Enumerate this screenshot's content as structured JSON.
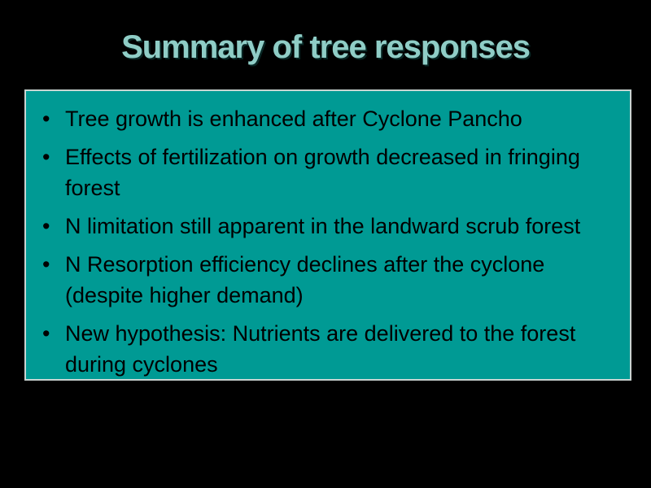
{
  "slide": {
    "title": "Summary of tree responses",
    "bullet_char": "•",
    "bullets": [
      "Tree growth is enhanced after Cyclone Pancho",
      "Effects of fertilization on growth decreased in fringing forest",
      "N limitation still apparent in the landward scrub forest",
      "N Resorption efficiency declines after the cyclone (despite higher demand)",
      "New hypothesis: Nutrients are delivered to the forest during cyclones"
    ],
    "colors": {
      "background": "#000000",
      "title_text": "#8FCDC6",
      "box_fill": "#009A94",
      "box_border": "#C9D3D1",
      "body_text": "#000000"
    }
  }
}
